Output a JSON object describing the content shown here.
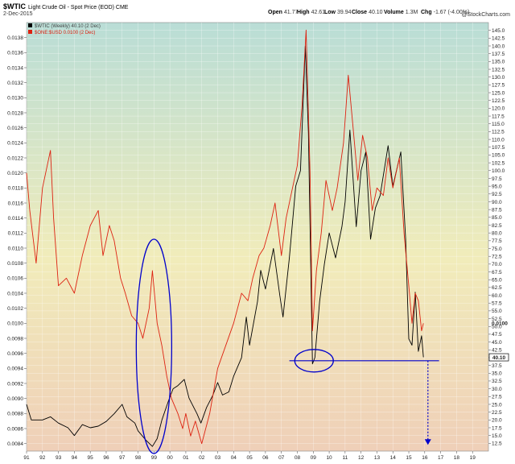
{
  "header": {
    "symbol": "$WTIC",
    "title_rest": "Light Crude Oil - Spot Price (EOD)  CME",
    "date": "2-Dec-2015",
    "ohlc": [
      {
        "label": "Open",
        "value": "41.77"
      },
      {
        "label": "High",
        "value": "42.61"
      },
      {
        "label": "Low",
        "value": "39.94"
      },
      {
        "label": "Close",
        "value": "40.10"
      },
      {
        "label": "Volume",
        "value": "1.3M"
      },
      {
        "label": "Chg",
        "value": "-1.67 (-4.00%)"
      }
    ],
    "watermark": "@StockCharts.com"
  },
  "legend": [
    {
      "label": "$WTIC (Weekly) 40.10 (2 Dec)",
      "color": "#000000"
    },
    {
      "label": "$ONE:$USD 0.0100 (2 Dec)",
      "color": "#dd2211"
    }
  ],
  "price_tag": "40.10",
  "ratio_tag": "0.0100",
  "chart_data": {
    "type": "line",
    "x_ticks": [
      "91",
      "92",
      "93",
      "94",
      "95",
      "96",
      "97",
      "98",
      "99",
      "00",
      "01",
      "02",
      "03",
      "04",
      "05",
      "06",
      "07",
      "08",
      "09",
      "10",
      "11",
      "12",
      "13",
      "14",
      "15",
      "16",
      "17",
      "18",
      "19"
    ],
    "x_range": [
      1991,
      2020
    ],
    "y_right": {
      "range": [
        10,
        147.5
      ],
      "ticks": [
        "12.5",
        "15.0",
        "17.5",
        "20.0",
        "22.5",
        "25.0",
        "27.5",
        "30.0",
        "32.5",
        "35.0",
        "37.5",
        "40.0",
        "42.5",
        "45.0",
        "47.5",
        "50.0",
        "52.5",
        "55.0",
        "57.5",
        "60.0",
        "62.5",
        "65.0",
        "67.5",
        "70.0",
        "72.5",
        "75.0",
        "77.5",
        "80.0",
        "82.5",
        "85.0",
        "87.5",
        "90.0",
        "92.5",
        "95.0",
        "97.5",
        "100.0",
        "102.5",
        "105.0",
        "107.5",
        "110.0",
        "112.5",
        "115.0",
        "117.5",
        "120.0",
        "122.5",
        "125.0",
        "127.5",
        "130.0",
        "132.5",
        "135.0",
        "137.5",
        "140.0",
        "142.5",
        "145.0"
      ]
    },
    "y_left": {
      "range": [
        0.0083,
        0.014
      ],
      "ticks": [
        "0.0084",
        "0.0086",
        "0.0088",
        "0.0090",
        "0.0092",
        "0.0094",
        "0.0096",
        "0.0098",
        "0.0100",
        "0.0102",
        "0.0104",
        "0.0106",
        "0.0108",
        "0.0110",
        "0.0112",
        "0.0114",
        "0.0116",
        "0.0118",
        "0.0120",
        "0.0122",
        "0.0124",
        "0.0126",
        "0.0128",
        "0.0130",
        "0.0132",
        "0.0134",
        "0.0136",
        "0.0138"
      ]
    },
    "series": [
      {
        "name": "$WTIC (Weekly) 40.10 (2 Dec)",
        "axis": "right",
        "color": "#000000",
        "points": [
          [
            1991.0,
            25
          ],
          [
            1991.3,
            20
          ],
          [
            1992.0,
            20
          ],
          [
            1992.5,
            21
          ],
          [
            1993.0,
            19
          ],
          [
            1993.6,
            17.5
          ],
          [
            1994.0,
            15
          ],
          [
            1994.5,
            18.5
          ],
          [
            1995.0,
            17.5
          ],
          [
            1995.5,
            18
          ],
          [
            1996.0,
            19.5
          ],
          [
            1996.5,
            22
          ],
          [
            1997.0,
            25
          ],
          [
            1997.3,
            21
          ],
          [
            1997.8,
            19
          ],
          [
            1998.0,
            16.5
          ],
          [
            1998.5,
            13.5
          ],
          [
            1998.9,
            11.5
          ],
          [
            1999.2,
            14
          ],
          [
            1999.5,
            20
          ],
          [
            1999.9,
            26
          ],
          [
            2000.2,
            30
          ],
          [
            2000.5,
            31
          ],
          [
            2000.9,
            33
          ],
          [
            2001.2,
            27
          ],
          [
            2001.7,
            22
          ],
          [
            2001.95,
            19
          ],
          [
            2002.3,
            24
          ],
          [
            2002.7,
            28
          ],
          [
            2003.0,
            32
          ],
          [
            2003.3,
            28
          ],
          [
            2003.7,
            29
          ],
          [
            2004.0,
            34
          ],
          [
            2004.5,
            40
          ],
          [
            2004.8,
            53
          ],
          [
            2005.0,
            44
          ],
          [
            2005.5,
            58
          ],
          [
            2005.7,
            68
          ],
          [
            2006.0,
            62
          ],
          [
            2006.5,
            75
          ],
          [
            2006.9,
            60
          ],
          [
            2007.1,
            53
          ],
          [
            2007.5,
            72
          ],
          [
            2007.9,
            95
          ],
          [
            2008.2,
            100
          ],
          [
            2008.5,
            140
          ],
          [
            2008.7,
            112
          ],
          [
            2008.95,
            38
          ],
          [
            2009.1,
            40
          ],
          [
            2009.4,
            58
          ],
          [
            2009.7,
            70
          ],
          [
            2010.0,
            80
          ],
          [
            2010.4,
            72
          ],
          [
            2010.8,
            82
          ],
          [
            2011.0,
            90
          ],
          [
            2011.3,
            113
          ],
          [
            2011.7,
            82
          ],
          [
            2012.0,
            100
          ],
          [
            2012.3,
            106
          ],
          [
            2012.6,
            78
          ],
          [
            2012.9,
            88
          ],
          [
            2013.2,
            92
          ],
          [
            2013.7,
            108
          ],
          [
            2014.0,
            95
          ],
          [
            2014.5,
            106
          ],
          [
            2014.8,
            78
          ],
          [
            2015.0,
            46
          ],
          [
            2015.2,
            44
          ],
          [
            2015.4,
            61
          ],
          [
            2015.6,
            42
          ],
          [
            2015.8,
            47
          ],
          [
            2015.92,
            40.1
          ]
        ]
      },
      {
        "name": "$ONE:$USD 0.0100 (2 Dec)",
        "axis": "left",
        "color": "#dd2211",
        "points": [
          [
            1991.0,
            0.012
          ],
          [
            1991.2,
            0.0115
          ],
          [
            1991.6,
            0.0108
          ],
          [
            1992.0,
            0.0118
          ],
          [
            1992.5,
            0.0123
          ],
          [
            1992.7,
            0.0114
          ],
          [
            1993.0,
            0.0105
          ],
          [
            1993.5,
            0.0106
          ],
          [
            1994.0,
            0.0104
          ],
          [
            1994.5,
            0.0109
          ],
          [
            1995.0,
            0.0113
          ],
          [
            1995.5,
            0.0115
          ],
          [
            1995.8,
            0.0109
          ],
          [
            1996.2,
            0.0113
          ],
          [
            1996.5,
            0.0111
          ],
          [
            1996.9,
            0.0106
          ],
          [
            1997.2,
            0.0104
          ],
          [
            1997.6,
            0.0101
          ],
          [
            1998.0,
            0.01
          ],
          [
            1998.3,
            0.0098
          ],
          [
            1998.7,
            0.0102
          ],
          [
            1998.9,
            0.0107
          ],
          [
            1999.2,
            0.01
          ],
          [
            1999.5,
            0.0097
          ],
          [
            1999.8,
            0.0093
          ],
          [
            2000.1,
            0.009
          ],
          [
            2000.5,
            0.0088
          ],
          [
            2000.8,
            0.0086
          ],
          [
            2001.0,
            0.0088
          ],
          [
            2001.3,
            0.0085
          ],
          [
            2001.6,
            0.0087
          ],
          [
            2002.0,
            0.0084
          ],
          [
            2002.5,
            0.0088
          ],
          [
            2003.0,
            0.0094
          ],
          [
            2003.5,
            0.0097
          ],
          [
            2004.0,
            0.01
          ],
          [
            2004.5,
            0.0104
          ],
          [
            2004.9,
            0.0103
          ],
          [
            2005.2,
            0.0106
          ],
          [
            2005.6,
            0.0109
          ],
          [
            2005.9,
            0.011
          ],
          [
            2006.3,
            0.0113
          ],
          [
            2006.6,
            0.0116
          ],
          [
            2007.0,
            0.0109
          ],
          [
            2007.3,
            0.0114
          ],
          [
            2007.7,
            0.0118
          ],
          [
            2008.0,
            0.0121
          ],
          [
            2008.3,
            0.0129
          ],
          [
            2008.55,
            0.0139
          ],
          [
            2008.8,
            0.012
          ],
          [
            2008.95,
            0.0099
          ],
          [
            2009.2,
            0.0107
          ],
          [
            2009.5,
            0.0112
          ],
          [
            2009.8,
            0.0119
          ],
          [
            2010.2,
            0.0115
          ],
          [
            2010.5,
            0.0118
          ],
          [
            2010.9,
            0.0124
          ],
          [
            2011.2,
            0.0133
          ],
          [
            2011.5,
            0.0126
          ],
          [
            2011.8,
            0.0119
          ],
          [
            2012.1,
            0.0125
          ],
          [
            2012.4,
            0.0122
          ],
          [
            2012.7,
            0.0115
          ],
          [
            2013.0,
            0.0118
          ],
          [
            2013.4,
            0.0117
          ],
          [
            2013.7,
            0.0122
          ],
          [
            2014.0,
            0.0118
          ],
          [
            2014.4,
            0.0122
          ],
          [
            2014.7,
            0.0112
          ],
          [
            2015.0,
            0.0105
          ],
          [
            2015.2,
            0.01
          ],
          [
            2015.4,
            0.0104
          ],
          [
            2015.6,
            0.0103
          ],
          [
            2015.8,
            0.0099
          ],
          [
            2015.92,
            0.01
          ]
        ]
      }
    ],
    "annotations": [
      {
        "type": "ellipse",
        "around_x": 1999.0,
        "color": "#0000cc"
      },
      {
        "type": "ellipse",
        "around_x": 2009.0,
        "around_y": 39,
        "color": "#0000cc"
      },
      {
        "type": "hline",
        "y": 39,
        "x_from": 2007.5,
        "x_to": 2016.9,
        "color": "#0000cc"
      },
      {
        "type": "dotted-arrow",
        "x": 2016.2,
        "y_from": 39,
        "y_to": 12,
        "color": "#0000cc"
      }
    ]
  }
}
